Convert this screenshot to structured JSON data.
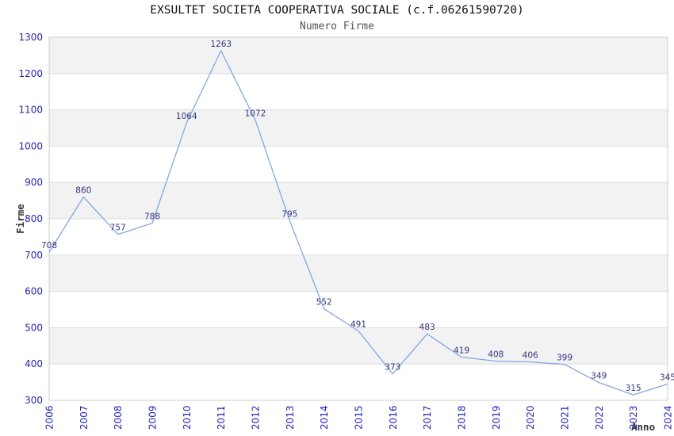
{
  "chart_data": {
    "type": "line",
    "title": "EXSULTET SOCIETA COOPERATIVA SOCIALE (c.f.06261590720)",
    "subtitle": "Numero Firme",
    "xlabel": "Anno",
    "ylabel": "Firme",
    "categories": [
      "2006",
      "2007",
      "2008",
      "2009",
      "2010",
      "2011",
      "2012",
      "2013",
      "2014",
      "2015",
      "2016",
      "2017",
      "2018",
      "2019",
      "2020",
      "2021",
      "2022",
      "2023",
      "2024"
    ],
    "values": [
      708,
      860,
      757,
      788,
      1064,
      1263,
      1072,
      795,
      552,
      491,
      373,
      483,
      419,
      408,
      406,
      399,
      349,
      315,
      345
    ],
    "ylim": [
      300,
      1300
    ],
    "yticks": [
      300,
      400,
      500,
      600,
      700,
      800,
      900,
      1000,
      1100,
      1200,
      1300
    ],
    "grid": "horizontal-bands-alternating",
    "legend": "none",
    "point_labels_visible": true,
    "colors": {
      "line": "#7fa8e8",
      "tick_label": "#2222cc",
      "point_label": "#333380",
      "band": "#f2f2f2",
      "band_alt": "#ffffff",
      "grid_line": "#dddddd",
      "plot_border": "#cccccc",
      "title": "#111111",
      "subtitle": "#555555",
      "axis_title": "#333333",
      "background": "#ffffff"
    }
  }
}
